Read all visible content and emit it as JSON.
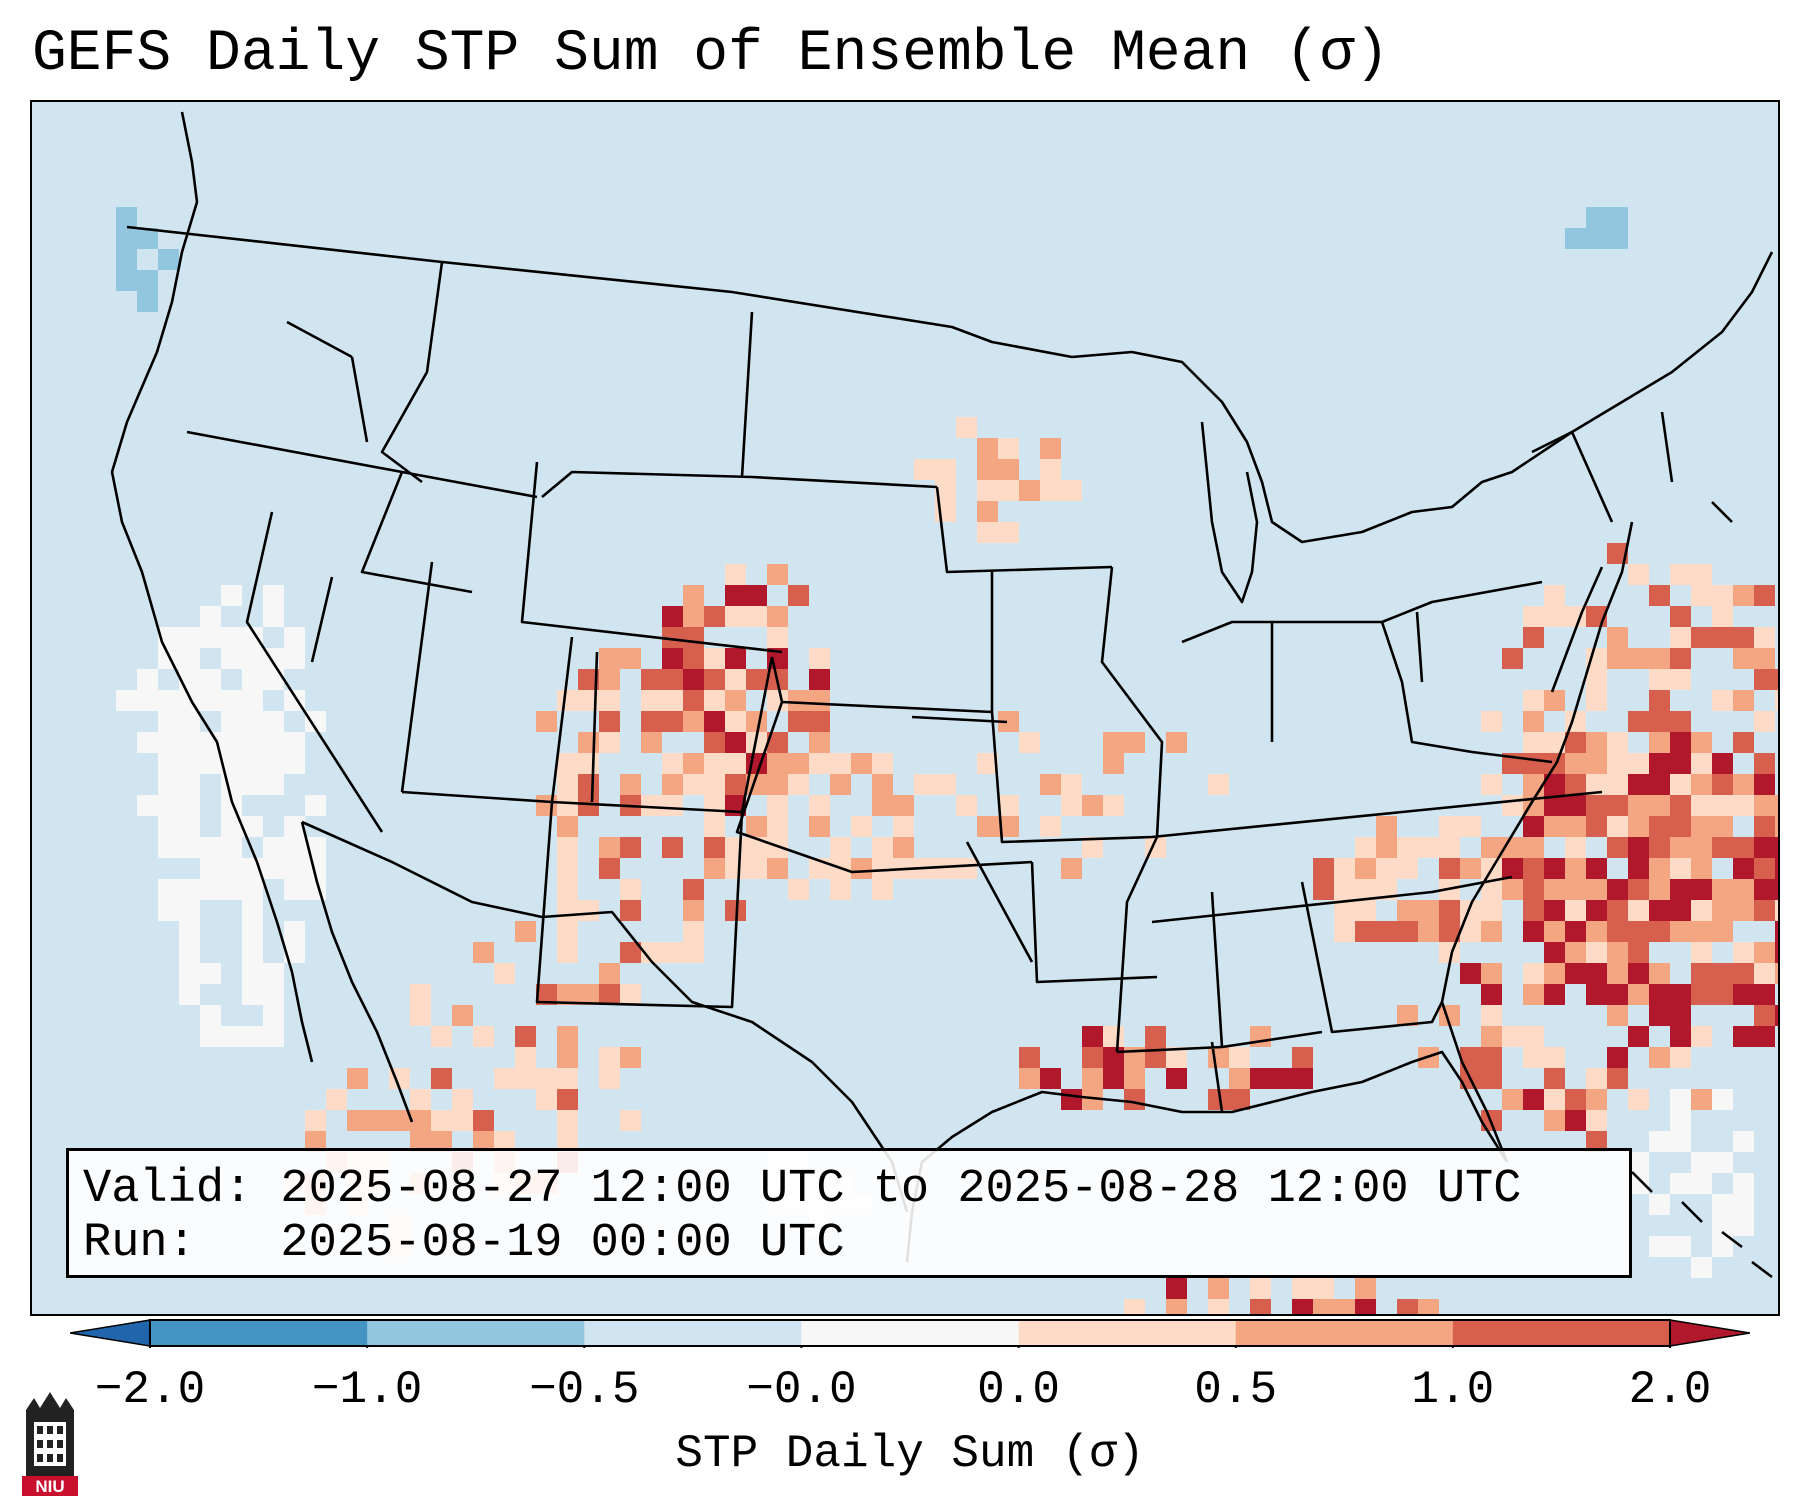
{
  "title": "GEFS Daily STP Sum of Ensemble Mean (σ)",
  "info": {
    "valid_line": "Valid: 2025-08-27 12:00 UTC to 2025-08-28 12:00 UTC",
    "run_line": "Run:   2025-08-19 00:00 UTC"
  },
  "colorbar": {
    "label": "STP Daily Sum (σ)",
    "ticks": [
      "−2.0",
      "−1.0",
      "−0.5",
      "−0.0",
      "0.0",
      "0.5",
      "1.0",
      "2.0"
    ],
    "colors": [
      "#2166ac",
      "#4393c3",
      "#92c5de",
      "#d1e5f0",
      "#f7f7f7",
      "#fddbc7",
      "#f4a582",
      "#d6604d",
      "#b2182b"
    ],
    "extend": "both"
  },
  "logo": {
    "text": "NIU",
    "name": "Northern Illinois University"
  },
  "map": {
    "region": "Contiguous United States",
    "field": "GEFS ensemble-mean daily STP sum anomaly",
    "background_color": "#d1e5f0",
    "high_anomaly_areas": [
      "Western Atlantic off the Carolinas",
      "Colorado / High Plains",
      "Gulf of Mexico (scattered)"
    ],
    "negative_anomaly_areas": [
      "Pacific off California"
    ]
  }
}
